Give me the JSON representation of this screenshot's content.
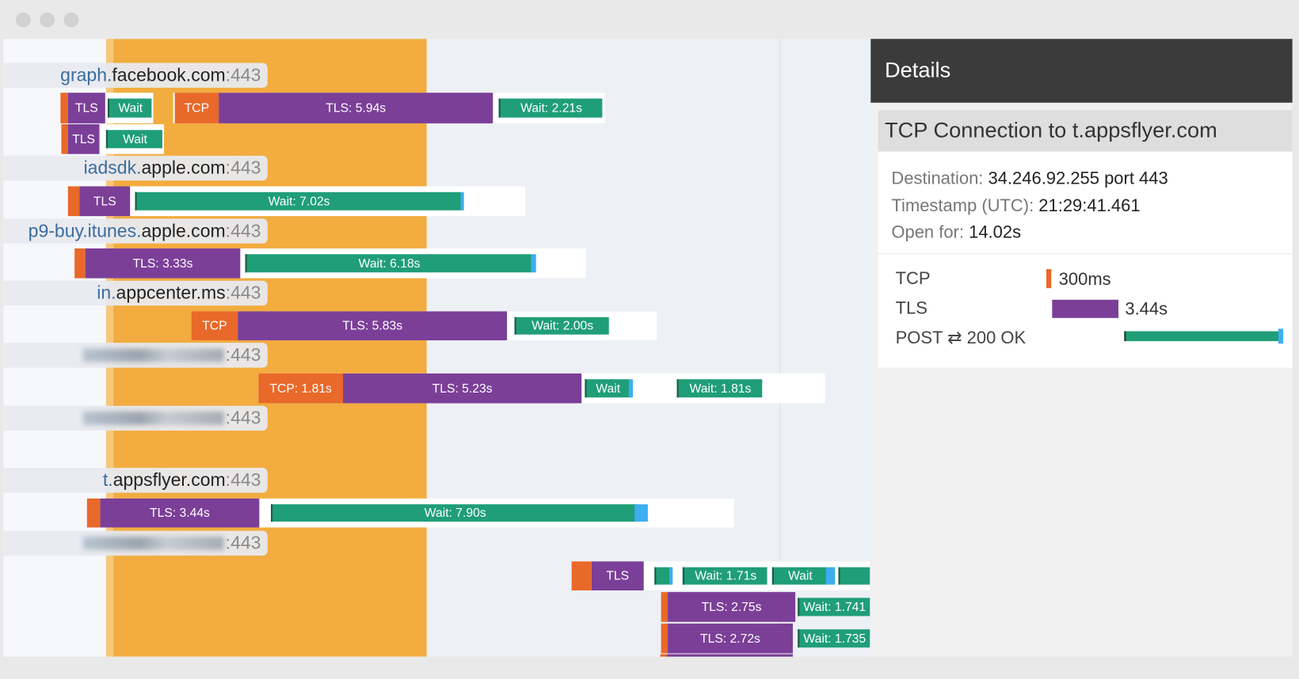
{
  "timeline": {
    "hosts": [
      {
        "prefix": "graph.",
        "domain": "facebook.com",
        "port": ":443"
      },
      {
        "prefix": "iadsdk.",
        "domain": "apple.com",
        "port": ":443"
      },
      {
        "prefix": "p9-buy.itunes.",
        "domain": "apple.com",
        "port": ":443"
      },
      {
        "prefix": "in.",
        "domain": "appcenter.ms",
        "port": ":443"
      },
      {
        "port": ":443"
      },
      {
        "port": ":443"
      },
      {
        "prefix": "t.",
        "domain": "appsflyer.com",
        "port": ":443"
      },
      {
        "port": ":443"
      }
    ],
    "rows": [
      [
        "TLS",
        "Wait",
        "TCP",
        "TLS: 5.94s",
        "Wait: 2.21s"
      ],
      [
        "TLS",
        "Wait"
      ],
      [
        "TLS",
        "Wait: 7.02s"
      ],
      [
        "TLS: 3.33s",
        "Wait: 6.18s"
      ],
      [
        "TCP",
        "TLS: 5.83s",
        "Wait: 2.00s"
      ],
      [
        "TCP: 1.81s",
        "TLS: 5.23s",
        "Wait",
        "Wait: 1.81s"
      ],
      [
        "TLS: 3.44s",
        "Wait: 7.90s"
      ],
      [
        "TLS",
        "Wait: 1.71s",
        "Wait"
      ],
      [
        "TLS: 2.75s",
        "Wait: 1.741"
      ],
      [
        "TLS: 2.72s",
        "Wait: 1.735"
      ]
    ]
  },
  "details": {
    "title": "Details",
    "card_title": "TCP Connection to t.appsflyer.com",
    "fields": [
      {
        "label": "Destination:",
        "value": "34.246.92.255 port 443"
      },
      {
        "label": "Timestamp (UTC):",
        "value": "21:29:41.461"
      },
      {
        "label": "Open for:",
        "value": "14.02s"
      }
    ],
    "timings": [
      {
        "phase": "TCP",
        "duration": "300ms"
      },
      {
        "phase": "TLS",
        "duration": "3.44s"
      },
      {
        "phase": "POST ⇄ 200 OK"
      }
    ]
  }
}
